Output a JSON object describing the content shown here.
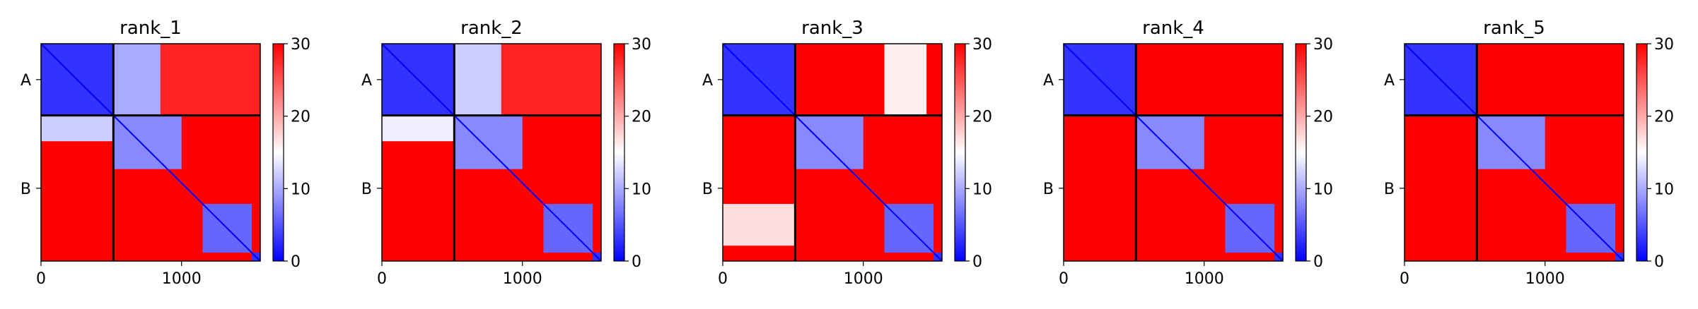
{
  "chart_data": [
    {
      "type": "heatmap",
      "title": "rank_1",
      "chain_labels": [
        "A",
        "B"
      ],
      "chain_boundary": 515,
      "matrix_size": 1560,
      "x_ticks": [
        {
          "value": 0,
          "label": "0"
        },
        {
          "value": 1000,
          "label": "1000"
        }
      ],
      "colorbar": {
        "min": 0,
        "max": 30,
        "ticks": [
          "0",
          "10",
          "20",
          "30"
        ],
        "colormap": "bwr"
      },
      "blocks": [
        {
          "row": [
            0,
            515
          ],
          "col": [
            0,
            515
          ],
          "value": 3
        },
        {
          "row": [
            0,
            515
          ],
          "col": [
            515,
            850
          ],
          "value": 10
        },
        {
          "row": [
            0,
            515
          ],
          "col": [
            850,
            1560
          ],
          "value": 28
        },
        {
          "row": [
            515,
            700
          ],
          "col": [
            0,
            515
          ],
          "value": 12
        },
        {
          "row": [
            515,
            900
          ],
          "col": [
            515,
            1000
          ],
          "value": 8
        },
        {
          "row": [
            1150,
            1500
          ],
          "col": [
            1150,
            1500
          ],
          "value": 6
        },
        {
          "row": [
            1500,
            1560
          ],
          "col": [
            1500,
            1560
          ],
          "value": 3
        }
      ]
    },
    {
      "type": "heatmap",
      "title": "rank_2",
      "chain_labels": [
        "A",
        "B"
      ],
      "chain_boundary": 515,
      "matrix_size": 1560,
      "x_ticks": [
        {
          "value": 0,
          "label": "0"
        },
        {
          "value": 1000,
          "label": "1000"
        }
      ],
      "colorbar": {
        "min": 0,
        "max": 30,
        "ticks": [
          "0",
          "10",
          "20",
          "30"
        ],
        "colormap": "bwr"
      },
      "blocks": [
        {
          "row": [
            0,
            515
          ],
          "col": [
            0,
            515
          ],
          "value": 3
        },
        {
          "row": [
            0,
            515
          ],
          "col": [
            515,
            850
          ],
          "value": 12
        },
        {
          "row": [
            0,
            515
          ],
          "col": [
            850,
            1560
          ],
          "value": 28
        },
        {
          "row": [
            515,
            700
          ],
          "col": [
            0,
            515
          ],
          "value": 14
        },
        {
          "row": [
            515,
            900
          ],
          "col": [
            515,
            1000
          ],
          "value": 8
        },
        {
          "row": [
            1150,
            1500
          ],
          "col": [
            1150,
            1500
          ],
          "value": 6
        },
        {
          "row": [
            1500,
            1560
          ],
          "col": [
            1500,
            1560
          ],
          "value": 3
        }
      ]
    },
    {
      "type": "heatmap",
      "title": "rank_3",
      "chain_labels": [
        "A",
        "B"
      ],
      "chain_boundary": 515,
      "matrix_size": 1560,
      "x_ticks": [
        {
          "value": 0,
          "label": "0"
        },
        {
          "value": 1000,
          "label": "1000"
        }
      ],
      "colorbar": {
        "min": 0,
        "max": 30,
        "ticks": [
          "0",
          "10",
          "20",
          "30"
        ],
        "colormap": "bwr"
      },
      "blocks": [
        {
          "row": [
            0,
            515
          ],
          "col": [
            0,
            515
          ],
          "value": 3
        },
        {
          "row": [
            0,
            515
          ],
          "col": [
            1150,
            1450
          ],
          "value": 16
        },
        {
          "row": [
            1150,
            1450
          ],
          "col": [
            0,
            515
          ],
          "value": 17
        },
        {
          "row": [
            515,
            900
          ],
          "col": [
            515,
            1000
          ],
          "value": 8
        },
        {
          "row": [
            1150,
            1500
          ],
          "col": [
            1150,
            1500
          ],
          "value": 6
        },
        {
          "row": [
            1500,
            1560
          ],
          "col": [
            1500,
            1560
          ],
          "value": 3
        }
      ]
    },
    {
      "type": "heatmap",
      "title": "rank_4",
      "chain_labels": [
        "A",
        "B"
      ],
      "chain_boundary": 515,
      "matrix_size": 1560,
      "x_ticks": [
        {
          "value": 0,
          "label": "0"
        },
        {
          "value": 1000,
          "label": "1000"
        }
      ],
      "colorbar": {
        "min": 0,
        "max": 30,
        "ticks": [
          "0",
          "10",
          "20",
          "30"
        ],
        "colormap": "bwr"
      },
      "blocks": [
        {
          "row": [
            0,
            515
          ],
          "col": [
            0,
            515
          ],
          "value": 3
        },
        {
          "row": [
            515,
            900
          ],
          "col": [
            515,
            1000
          ],
          "value": 8
        },
        {
          "row": [
            1150,
            1500
          ],
          "col": [
            1150,
            1500
          ],
          "value": 6
        },
        {
          "row": [
            1500,
            1560
          ],
          "col": [
            1500,
            1560
          ],
          "value": 3
        }
      ]
    },
    {
      "type": "heatmap",
      "title": "rank_5",
      "chain_labels": [
        "A",
        "B"
      ],
      "chain_boundary": 515,
      "matrix_size": 1560,
      "x_ticks": [
        {
          "value": 0,
          "label": "0"
        },
        {
          "value": 1000,
          "label": "1000"
        }
      ],
      "colorbar": {
        "min": 0,
        "max": 30,
        "ticks": [
          "0",
          "10",
          "20",
          "30"
        ],
        "colormap": "bwr"
      },
      "blocks": [
        {
          "row": [
            0,
            515
          ],
          "col": [
            0,
            515
          ],
          "value": 3
        },
        {
          "row": [
            515,
            900
          ],
          "col": [
            515,
            1000
          ],
          "value": 8
        },
        {
          "row": [
            1150,
            1500
          ],
          "col": [
            1150,
            1500
          ],
          "value": 6
        },
        {
          "row": [
            1500,
            1560
          ],
          "col": [
            1500,
            1560
          ],
          "value": 3
        }
      ]
    }
  ]
}
